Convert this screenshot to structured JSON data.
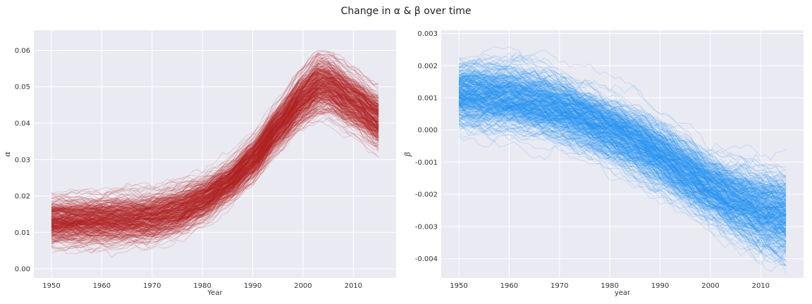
{
  "figure": {
    "title": "Change in α & β over time"
  },
  "chart_data": [
    {
      "type": "line",
      "subplot": "left",
      "xlabel": "Year",
      "ylabel": "α",
      "xlim": [
        1946.5,
        2018.5
      ],
      "ylim": [
        -0.0025,
        0.0655
      ],
      "xticks": [
        1950,
        1960,
        1970,
        1980,
        1990,
        2000,
        2010
      ],
      "yticks": [
        0.0,
        0.01,
        0.02,
        0.03,
        0.04,
        0.05,
        0.06
      ],
      "ytick_labels": [
        "0.00",
        "0.01",
        "0.02",
        "0.03",
        "0.04",
        "0.05",
        "0.06"
      ],
      "grid": true,
      "color": "#b22222",
      "x_range": [
        1950,
        2015
      ],
      "mean_curve": {
        "x": [
          1950,
          1955,
          1960,
          1965,
          1970,
          1975,
          1980,
          1985,
          1990,
          1995,
          2000,
          2003,
          2005,
          2010,
          2015
        ],
        "y": [
          0.013,
          0.0132,
          0.0135,
          0.0138,
          0.0143,
          0.016,
          0.019,
          0.0235,
          0.03,
          0.039,
          0.047,
          0.0505,
          0.0505,
          0.046,
          0.041
        ]
      },
      "band_halfwidth": {
        "x": [
          1950,
          1975,
          1985,
          1995,
          2003,
          2015
        ],
        "y": [
          0.0055,
          0.0055,
          0.0045,
          0.005,
          0.0065,
          0.0065
        ]
      },
      "series_count": 400
    },
    {
      "type": "line",
      "subplot": "right",
      "xlabel": "year",
      "ylabel": "β",
      "xlim": [
        1946.5,
        2018.5
      ],
      "ylim": [
        -0.0046,
        0.0031
      ],
      "xticks": [
        1950,
        1960,
        1970,
        1980,
        1990,
        2000,
        2010
      ],
      "yticks": [
        0.003,
        0.002,
        0.001,
        0.0,
        -0.001,
        -0.002,
        -0.003,
        -0.004
      ],
      "ytick_labels": [
        "0.003",
        "0.002",
        "0.001",
        "0.000",
        "-0.001",
        "-0.002",
        "-0.003",
        "-0.004"
      ],
      "grid": true,
      "color": "#1e90f5",
      "x_range": [
        1950,
        2015
      ],
      "mean_curve": {
        "x": [
          1950,
          1955,
          1960,
          1965,
          1970,
          1975,
          1980,
          1985,
          1990,
          1995,
          2000,
          2005,
          2010,
          2015
        ],
        "y": [
          0.0011,
          0.00105,
          0.001,
          0.00085,
          0.00065,
          0.00035,
          0.0,
          -0.00035,
          -0.0008,
          -0.0013,
          -0.0018,
          -0.0022,
          -0.0025,
          -0.0027
        ]
      },
      "band_halfwidth": {
        "x": [
          1950,
          1980,
          2000,
          2015
        ],
        "y": [
          0.0009,
          0.0009,
          0.0009,
          0.0012
        ]
      },
      "series_count": 400
    }
  ]
}
